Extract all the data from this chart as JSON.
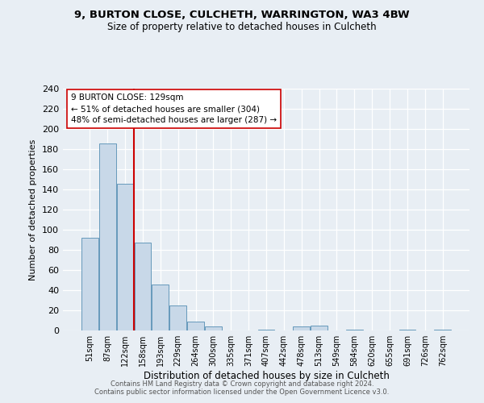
{
  "title1": "9, BURTON CLOSE, CULCHETH, WARRINGTON, WA3 4BW",
  "title2": "Size of property relative to detached houses in Culcheth",
  "xlabel": "Distribution of detached houses by size in Culcheth",
  "ylabel": "Number of detached properties",
  "bar_labels": [
    "51sqm",
    "87sqm",
    "122sqm",
    "158sqm",
    "193sqm",
    "229sqm",
    "264sqm",
    "300sqm",
    "335sqm",
    "371sqm",
    "407sqm",
    "442sqm",
    "478sqm",
    "513sqm",
    "549sqm",
    "584sqm",
    "620sqm",
    "655sqm",
    "691sqm",
    "726sqm",
    "762sqm"
  ],
  "bar_values": [
    92,
    186,
    146,
    87,
    46,
    25,
    9,
    4,
    0,
    0,
    1,
    0,
    4,
    5,
    0,
    1,
    0,
    0,
    1,
    0,
    1
  ],
  "ylim": [
    0,
    240
  ],
  "yticks": [
    0,
    20,
    40,
    60,
    80,
    100,
    120,
    140,
    160,
    180,
    200,
    220,
    240
  ],
  "bar_color": "#c8d8e8",
  "bar_edge_color": "#6699bb",
  "vline_color": "#cc0000",
  "annotation_box_text": "9 BURTON CLOSE: 129sqm\n← 51% of detached houses are smaller (304)\n48% of semi-detached houses are larger (287) →",
  "annotation_box_color": "#ffffff",
  "annotation_box_edge_color": "#cc0000",
  "footer1": "Contains HM Land Registry data © Crown copyright and database right 2024.",
  "footer2": "Contains public sector information licensed under the Open Government Licence v3.0.",
  "bg_color": "#e8eef4",
  "plot_bg_color": "#e8eef4",
  "grid_color": "#ffffff"
}
